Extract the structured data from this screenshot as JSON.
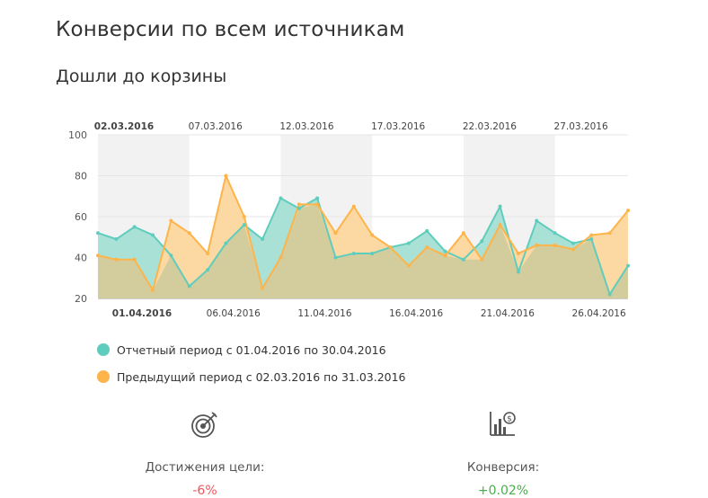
{
  "page": {
    "title": "Конверсии по всем источникам",
    "section_title": "Дошли до корзины"
  },
  "legend": {
    "current": "Отчетный период с 01.04.2016 по 30.04.2016",
    "previous": "Предыдущий период с 02.03.2016 по 31.03.2016"
  },
  "kpis": [
    {
      "icon": "target-icon",
      "label": "Достижения цели:",
      "value": "-6%",
      "color": "#f0555a"
    },
    {
      "icon": "bar-chart-icon",
      "label": "Конверсия:",
      "value": "+0.02%",
      "color": "#4cae4c"
    }
  ],
  "colors": {
    "current": "#5fcdbd",
    "current_fill": "#a9e1d6",
    "previous": "#fdb44b",
    "previous_fill": "#fcd9a3",
    "overlap_fill": "#d3cc9c",
    "band": "#f2f2f2",
    "grid": "#e6e6e6"
  },
  "chart_data": {
    "type": "area",
    "ylim": [
      20,
      100
    ],
    "yticks": [
      20,
      40,
      60,
      80,
      100
    ],
    "top_axis_labels": [
      "02.03.2016",
      "07.03.2016",
      "12.03.2016",
      "17.03.2016",
      "22.03.2016",
      "27.03.2016"
    ],
    "bottom_axis_labels": [
      "01.04.2016",
      "06.04.2016",
      "11.04.2016",
      "16.04.2016",
      "21.04.2016",
      "26.04.2016"
    ],
    "grid": true,
    "series": [
      {
        "name": "Отчетный период с 01.04.2016 по 30.04.2016",
        "values": [
          52,
          49,
          55,
          51,
          41,
          26,
          34,
          47,
          56,
          49,
          69,
          64,
          69,
          40,
          42,
          42,
          45,
          47,
          53,
          43,
          39,
          48,
          65,
          33,
          58,
          52,
          47,
          49,
          22,
          36
        ]
      },
      {
        "name": "Предыдущий период с 02.03.2016 по 31.03.2016",
        "values": [
          41,
          39,
          39,
          24,
          58,
          52,
          42,
          80,
          60,
          25,
          40,
          66,
          66,
          52,
          65,
          51,
          45,
          36,
          45,
          41,
          52,
          39,
          56,
          42,
          46,
          46,
          44,
          51,
          52,
          63
        ]
      }
    ]
  }
}
